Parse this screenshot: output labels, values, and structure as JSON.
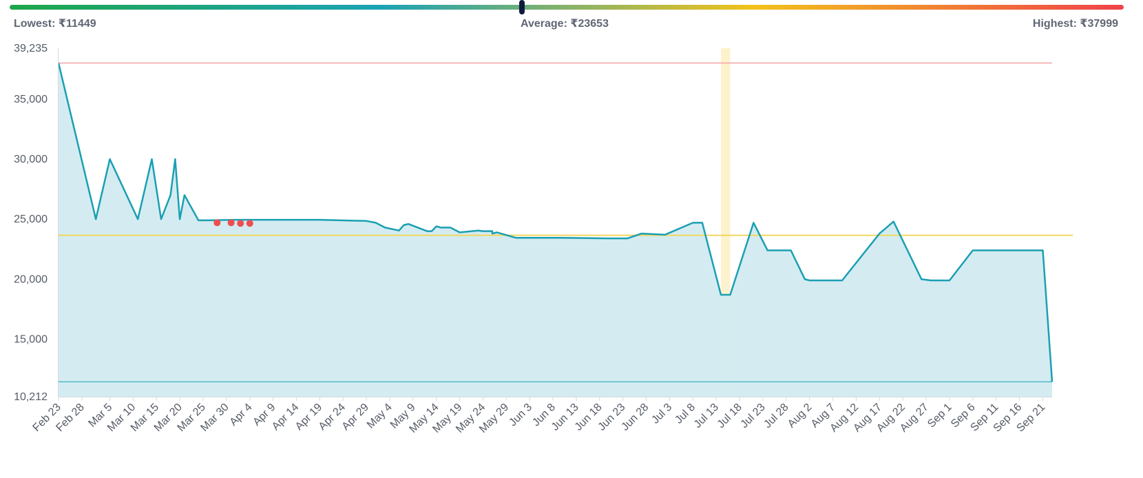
{
  "header": {
    "lowest_label": "Lowest: ₹11449",
    "average_label": "Average: ₹23653",
    "highest_label": "Highest: ₹37999",
    "gradient_colors": [
      "#1fa64a",
      "#1ba3b5",
      "#f2c21b",
      "#f0424a"
    ],
    "marker_color": "#0f1b3d"
  },
  "chart_data": {
    "type": "area",
    "xlabel": "",
    "ylabel": "",
    "ylim": [
      10212,
      39235
    ],
    "y_ticks": [
      10212,
      15000,
      20000,
      25000,
      30000,
      35000,
      39235
    ],
    "y_tick_labels": [
      "10,212",
      "15,000",
      "20,000",
      "25,000",
      "30,000",
      "35,000",
      "39,235"
    ],
    "x_tick_labels": [
      "Feb 23",
      "Feb 28",
      "Mar 5",
      "Mar 10",
      "Mar 15",
      "Mar 20",
      "Mar 25",
      "Mar 30",
      "Apr 4",
      "Apr 9",
      "Apr 14",
      "Apr 19",
      "Apr 24",
      "Apr 29",
      "May 4",
      "May 9",
      "May 14",
      "May 19",
      "May 24",
      "May 29",
      "Jun 3",
      "Jun 8",
      "Jun 13",
      "Jun 18",
      "Jun 23",
      "Jun 28",
      "Jul 3",
      "Jul 8",
      "Jul 13",
      "Jul 18",
      "Jul 23",
      "Jul 28",
      "Aug 2",
      "Aug 7",
      "Aug 12",
      "Aug 17",
      "Aug 22",
      "Aug 27",
      "Sep 1",
      "Sep 6",
      "Sep 11",
      "Sep 16",
      "Sep 21"
    ],
    "x_domain": [
      "Feb 23",
      "Sep 23"
    ],
    "reference_lines": {
      "highest": 37999,
      "average": 23653,
      "lowest": 11449
    },
    "highlight_band": [
      "Jul 14",
      "Jul 16"
    ],
    "series": [
      {
        "color": "#1a9fb3",
        "fill": "#d2ebf0",
        "points": [
          [
            "Feb 23",
            37999
          ],
          [
            "Mar 2",
            25000
          ],
          [
            "Mar 5",
            30000
          ],
          [
            "Mar 11",
            25000
          ],
          [
            "Mar 14",
            30000
          ],
          [
            "Mar 16",
            25000
          ],
          [
            "Mar 18",
            27000
          ],
          [
            "Mar 19",
            30000
          ],
          [
            "Mar 20",
            25000
          ],
          [
            "Mar 21",
            27000
          ],
          [
            "Mar 24",
            24900
          ],
          [
            "Mar 26",
            24900
          ],
          [
            "Apr 1",
            24950
          ],
          [
            "Apr 9",
            24950
          ],
          [
            "Apr 19",
            24950
          ],
          [
            "Apr 29",
            24850
          ],
          [
            "May 1",
            24700
          ],
          [
            "May 3",
            24300
          ],
          [
            "May 6",
            24050
          ],
          [
            "May 7",
            24500
          ],
          [
            "May 8",
            24600
          ],
          [
            "May 12",
            24000
          ],
          [
            "May 13",
            24000
          ],
          [
            "May 14",
            24400
          ],
          [
            "May 15",
            24300
          ],
          [
            "May 17",
            24300
          ],
          [
            "May 19",
            23900
          ],
          [
            "May 23",
            24050
          ],
          [
            "May 24",
            24000
          ],
          [
            "May 26",
            24000
          ],
          [
            "May 26",
            23800
          ],
          [
            "May 27",
            23900
          ],
          [
            "May 31",
            23450
          ],
          [
            "Jun 10",
            23450
          ],
          [
            "Jun 20",
            23400
          ],
          [
            "Jun 24",
            23400
          ],
          [
            "Jun 27",
            23800
          ],
          [
            "Jul 2",
            23700
          ],
          [
            "Jul 8",
            24700
          ],
          [
            "Jul 10",
            24700
          ],
          [
            "Jul 14",
            18700
          ],
          [
            "Jul 16",
            18700
          ],
          [
            "Jul 21",
            24700
          ],
          [
            "Jul 24",
            22400
          ],
          [
            "Jul 29",
            22400
          ],
          [
            "Aug 1",
            20000
          ],
          [
            "Aug 2",
            19900
          ],
          [
            "Aug 9",
            19900
          ],
          [
            "Aug 17",
            23800
          ],
          [
            "Aug 20",
            24800
          ],
          [
            "Aug 26",
            20000
          ],
          [
            "Aug 28",
            19900
          ],
          [
            "Sep 1",
            19900
          ],
          [
            "Sep 6",
            22400
          ],
          [
            "Sep 11",
            22400
          ],
          [
            "Sep 21",
            22400
          ],
          [
            "Sep 22",
            17000
          ],
          [
            "Sep 23",
            11449
          ]
        ]
      }
    ],
    "markers": {
      "color": "#f04e4e",
      "points": [
        [
          "Mar 28",
          24700
        ],
        [
          "Mar 31",
          24700
        ],
        [
          "Apr 2",
          24650
        ],
        [
          "Apr 4",
          24650
        ]
      ]
    },
    "colors": {
      "highest_line": "#f5a3a3",
      "average_line": "#f2d65e",
      "lowest_line": "#4fb8c9",
      "band": "#fdf0c4",
      "axis": "#d6dae0"
    }
  }
}
